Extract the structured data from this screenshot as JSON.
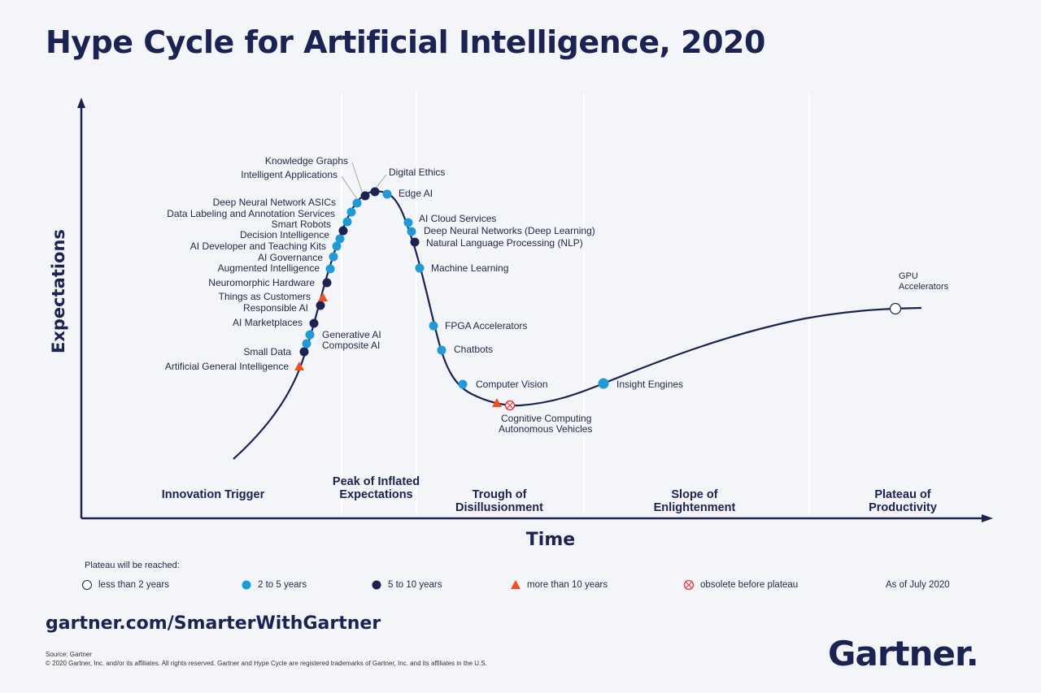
{
  "title": "Hype Cycle for Artificial Intelligence, 2020",
  "axes": {
    "y_label": "Expectations",
    "x_label": "Time"
  },
  "phases": [
    {
      "name": "innovation-trigger",
      "label": "Innovation Trigger"
    },
    {
      "name": "peak",
      "label": "Peak of Inflated Expectations"
    },
    {
      "name": "trough",
      "label": "Trough of Disillusionment"
    },
    {
      "name": "slope",
      "label": "Slope of Enlightenment"
    },
    {
      "name": "plateau",
      "label": "Plateau of Productivity"
    }
  ],
  "technologies": [
    {
      "label": "Artificial General Intelligence",
      "category": "more than 10 years"
    },
    {
      "label": "Small Data",
      "category": "5 to 10 years"
    },
    {
      "label": "Composite AI",
      "category": "2 to 5 years"
    },
    {
      "label": "Generative AI",
      "category": "2 to 5 years"
    },
    {
      "label": "AI Marketplaces",
      "category": "5 to 10 years"
    },
    {
      "label": "Responsible AI",
      "category": "5 to 10 years"
    },
    {
      "label": "Things as Customers",
      "category": "more than 10 years"
    },
    {
      "label": "Neuromorphic Hardware",
      "category": "5 to 10 years"
    },
    {
      "label": "Augmented Intelligence",
      "category": "2 to 5 years"
    },
    {
      "label": "AI Governance",
      "category": "2 to 5 years"
    },
    {
      "label": "AI Developer and Teaching Kits",
      "category": "2 to 5 years"
    },
    {
      "label": "Decision Intelligence",
      "category": "2 to 5 years"
    },
    {
      "label": "Smart Robots",
      "category": "5 to 10 years"
    },
    {
      "label": "Data Labeling and Annotation Services",
      "category": "2 to 5 years"
    },
    {
      "label": "Deep Neural Network ASICs",
      "category": "2 to 5 years"
    },
    {
      "label": "Intelligent Applications",
      "category": "2 to 5 years"
    },
    {
      "label": "Knowledge Graphs",
      "category": "5 to 10 years"
    },
    {
      "label": "Digital Ethics",
      "category": "5 to 10 years"
    },
    {
      "label": "Edge AI",
      "category": "2 to 5 years"
    },
    {
      "label": "AI Cloud Services",
      "category": "2 to 5 years"
    },
    {
      "label": "Deep Neural Networks (Deep Learning)",
      "category": "2 to 5 years"
    },
    {
      "label": "Natural Language Processing (NLP)",
      "category": "5 to 10 years"
    },
    {
      "label": "Machine Learning",
      "category": "2 to 5 years"
    },
    {
      "label": "FPGA Accelerators",
      "category": "2 to 5 years"
    },
    {
      "label": "Chatbots",
      "category": "2 to 5 years"
    },
    {
      "label": "Computer Vision",
      "category": "2 to 5 years"
    },
    {
      "label": "Autonomous Vehicles",
      "category": "more than 10 years"
    },
    {
      "label": "Cognitive Computing",
      "category": "obsolete before plateau"
    },
    {
      "label": "Insight Engines",
      "category": "2 to 5 years"
    },
    {
      "label": "GPU Accelerators",
      "category": "less than 2 years"
    }
  ],
  "gpu_label_lines": [
    "GPU",
    "Accelerators"
  ],
  "legend": {
    "title": "Plateau will be reached:",
    "items": [
      {
        "name": "less-than-2",
        "label": "less than 2 years",
        "color": "#ffffff"
      },
      {
        "name": "2-to-5",
        "label": "2 to 5 years",
        "color": "#1e9ad6"
      },
      {
        "name": "5-to-10",
        "label": "5 to 10 years",
        "color": "#1a2352"
      },
      {
        "name": "more-than-10",
        "label": "more than 10 years",
        "color": "#f04e23"
      },
      {
        "name": "obsolete",
        "label": "obsolete before plateau",
        "color": "#e8303a"
      }
    ],
    "as_of": "As of July 2020"
  },
  "footer": {
    "url": "gartner.com/SmarterWithGartner",
    "source": "Source: Gartner",
    "copyright": "© 2020 Gartner, Inc. and/or its affiliates. All rights reserved. Gartner and Hype Cycle are registered trademarks of Gartner, Inc. and its affiliates in the U.S.",
    "logo": "Gartner",
    "logo_dot": "."
  },
  "colors": {
    "navy": "#1a2352",
    "light_blue": "#1e9ad6",
    "orange": "#f04e23",
    "red": "#e8303a"
  }
}
